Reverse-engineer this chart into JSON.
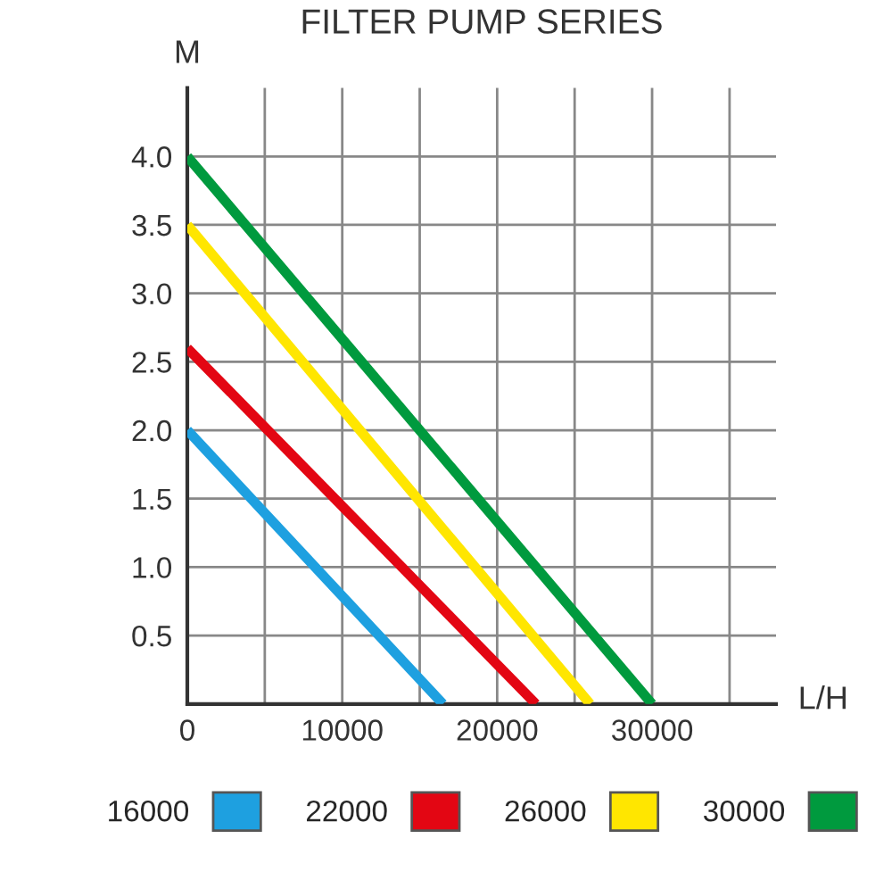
{
  "chart_data": {
    "type": "line",
    "title": "FILTER PUMP SERIES",
    "xlabel": "L/H",
    "ylabel": "M",
    "series": [
      {
        "name": "16000",
        "color": "#1ea0e0",
        "x": [
          0,
          16500
        ],
        "values": [
          2.0,
          0
        ]
      },
      {
        "name": "22000",
        "color": "#e30613",
        "x": [
          0,
          22500
        ],
        "values": [
          2.6,
          0
        ]
      },
      {
        "name": "26000",
        "color": "#ffe600",
        "x": [
          0,
          26000
        ],
        "values": [
          3.5,
          0
        ]
      },
      {
        "name": "30000",
        "color": "#009a3e",
        "x": [
          0,
          30000
        ],
        "values": [
          4.0,
          0
        ]
      }
    ],
    "xlim": [
      0,
      38000
    ],
    "xticks": [
      0,
      {
        "value": 5000,
        "label": null
      },
      10000,
      {
        "value": 15000,
        "label": null
      },
      20000,
      {
        "value": 25000,
        "label": null
      },
      30000,
      {
        "value": 35000,
        "label": null
      }
    ],
    "ylim": [
      0,
      4.5
    ],
    "yticks": [
      {
        "value": 0,
        "label": null
      },
      0.5,
      {
        "value": 1,
        "label": "1.0"
      },
      1.5,
      {
        "value": 2,
        "label": "2.0"
      },
      2.5,
      {
        "value": 3,
        "label": "3.0"
      },
      3.5,
      {
        "value": 4,
        "label": "4.0"
      }
    ],
    "grid": true,
    "legend": "bottom",
    "marker": "none",
    "line_style": "solid"
  }
}
